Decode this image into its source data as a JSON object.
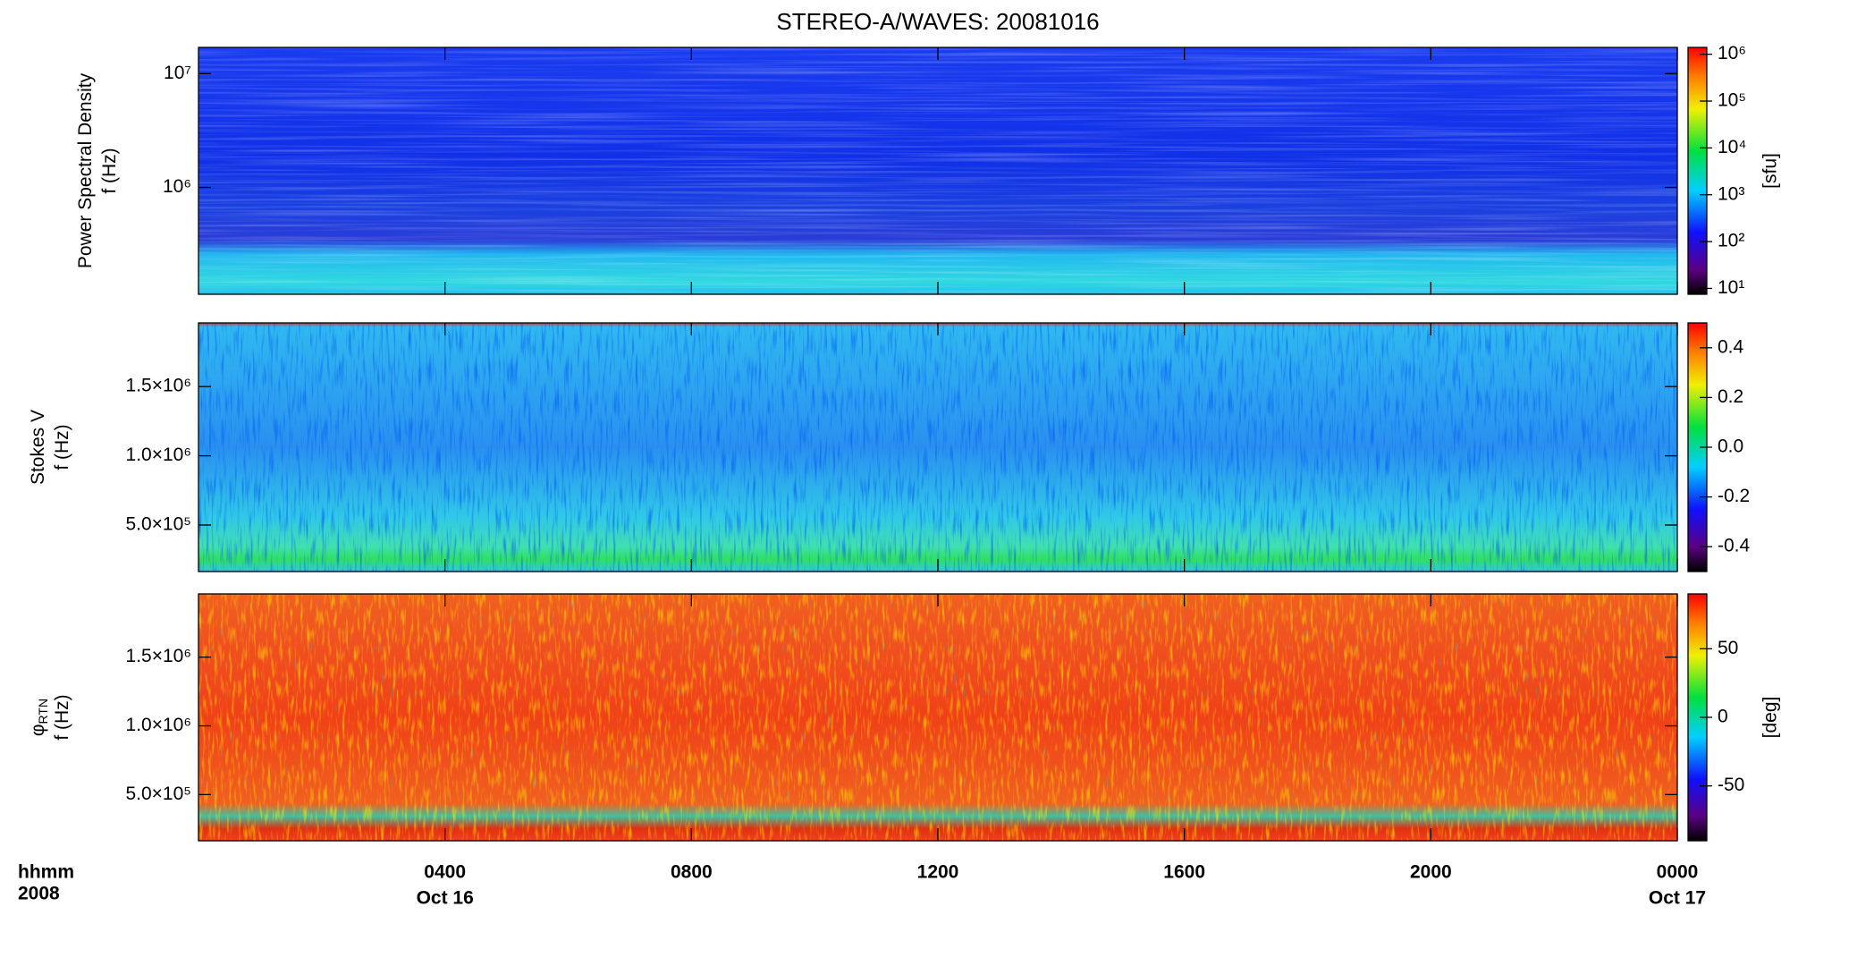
{
  "chart_data": [
    {
      "type": "spectrogram",
      "title": "STEREO-A/WAVES: 20081016",
      "ylabel": [
        "Power Spectral Density",
        "f (Hz)"
      ],
      "yscale": "log",
      "ylim": [
        115000,
        17000000
      ],
      "yticks": [
        {
          "value": 1000000,
          "label": "10⁶"
        },
        {
          "value": 10000000,
          "label": "10⁷"
        }
      ],
      "colorbar": {
        "scale": "log",
        "lim": [
          7.5,
          1400000
        ],
        "label": "[sfu]",
        "ticks": [
          {
            "value": 10,
            "label": "10¹"
          },
          {
            "value": 100,
            "label": "10²"
          },
          {
            "value": 1000,
            "label": "10³"
          },
          {
            "value": 10000,
            "label": "10⁴"
          },
          {
            "value": 100000,
            "label": "10⁵"
          },
          {
            "value": 1000000,
            "label": "10⁶"
          }
        ]
      }
    },
    {
      "type": "spectrogram",
      "ylabel": [
        "Stokes V",
        "f (Hz)"
      ],
      "yscale": "linear",
      "ylim": [
        164000,
        1960000
      ],
      "yticks": [
        {
          "value": 500000,
          "label": "5.0×10⁵"
        },
        {
          "value": 1000000,
          "label": "1.0×10⁶"
        },
        {
          "value": 1500000,
          "label": "1.5×10⁶"
        }
      ],
      "colorbar": {
        "scale": "linear",
        "lim": [
          -0.5,
          0.5
        ],
        "ticks": [
          -0.4,
          -0.2,
          {
            "value": 0,
            "label": "0.0"
          },
          0.2,
          0.4
        ]
      }
    },
    {
      "type": "spectrogram",
      "ylabel": [
        "φ",
        "f (Hz)"
      ],
      "ylabel_sub": "RTN",
      "yscale": "linear",
      "ylim": [
        164000,
        1960000
      ],
      "yticks": [
        {
          "value": 500000,
          "label": "5.0×10⁵"
        },
        {
          "value": 1000000,
          "label": "1.0×10⁶"
        },
        {
          "value": 1500000,
          "label": "1.5×10⁶"
        }
      ],
      "colorbar": {
        "scale": "linear",
        "lim": [
          -90,
          90
        ],
        "label": "[deg]",
        "ticks": [
          -50,
          0,
          50
        ]
      },
      "xunit_label": "hhmm",
      "xyear_label": "2008",
      "xlim": [
        0,
        24
      ],
      "xticks": [
        {
          "value": 4,
          "label": "0400"
        },
        {
          "value": 8,
          "label": "0800"
        },
        {
          "value": 12,
          "label": "1200"
        },
        {
          "value": 16,
          "label": "1600"
        },
        {
          "value": 20,
          "label": "2000"
        },
        {
          "value": 24,
          "label": "0000"
        }
      ],
      "xdate_labels": [
        {
          "value": 4,
          "label": "Oct 16"
        },
        {
          "value": 24,
          "label": "Oct 17"
        }
      ]
    }
  ]
}
